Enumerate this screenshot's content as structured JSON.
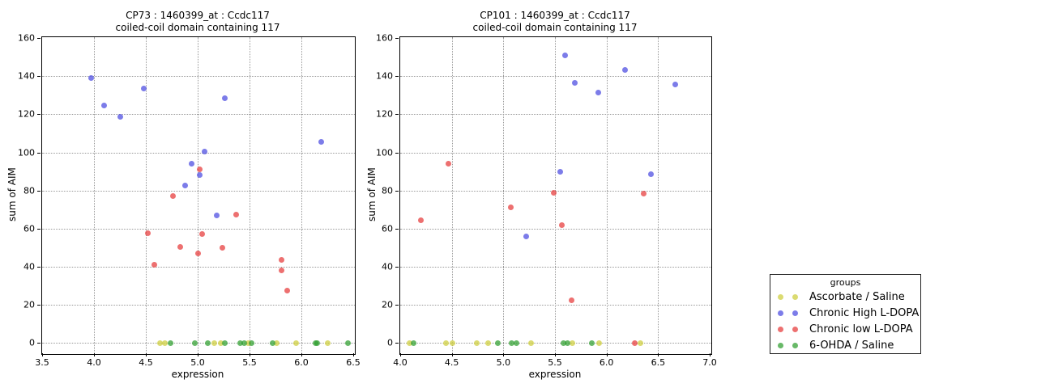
{
  "colors": {
    "yellow": "#cdcd3a",
    "blue": "#4a4ae0",
    "red": "#e63939",
    "green": "#2e9e2e"
  },
  "legend": {
    "title": "groups",
    "entries": [
      {
        "label": "Ascorbate / Saline",
        "color": "yellow"
      },
      {
        "label": "Chronic High L-DOPA",
        "color": "blue"
      },
      {
        "label": "Chronic low L-DOPA",
        "color": "red"
      },
      {
        "label": "6-OHDA / Saline",
        "color": "green"
      }
    ]
  },
  "chart_data": [
    {
      "type": "scatter",
      "title_line1": "CP73 : 1460399_at : Ccdc117",
      "title_line2": "coiled-coil domain containing 117",
      "xlabel": "expression",
      "ylabel": "sum of AIM",
      "xlim": [
        3.5,
        6.5
      ],
      "ylim": [
        -5,
        160.5
      ],
      "xticks": [
        3.5,
        4.0,
        4.5,
        5.0,
        5.5,
        6.0,
        6.5
      ],
      "xtick_labels": [
        "3.5",
        "4.0",
        "4.5",
        "5.0",
        "5.5",
        "6.0",
        "6.5"
      ],
      "yticks": [
        0,
        20,
        40,
        60,
        80,
        100,
        120,
        140,
        160
      ],
      "ytick_labels": [
        "0",
        "20",
        "40",
        "60",
        "80",
        "100",
        "120",
        "140",
        "160"
      ],
      "grid": true,
      "legend_position": "none",
      "series": [
        {
          "name": "Ascorbate / Saline",
          "color": "yellow",
          "points": [
            [
              4.64,
              0
            ],
            [
              4.68,
              0
            ],
            [
              5.16,
              0
            ],
            [
              5.22,
              0
            ],
            [
              5.49,
              0
            ],
            [
              5.76,
              0
            ],
            [
              5.95,
              0
            ],
            [
              6.25,
              0
            ]
          ]
        },
        {
          "name": "6-OHDA / Saline",
          "color": "green",
          "points": [
            [
              4.74,
              0
            ],
            [
              4.97,
              0
            ],
            [
              5.1,
              0
            ],
            [
              5.26,
              0
            ],
            [
              5.41,
              0
            ],
            [
              5.45,
              0
            ],
            [
              5.52,
              0
            ],
            [
              5.72,
              0
            ],
            [
              6.14,
              0
            ],
            [
              6.15,
              0
            ],
            [
              6.45,
              0
            ]
          ]
        },
        {
          "name": "Chronic High L-DOPA",
          "color": "blue",
          "points": [
            [
              3.97,
              139
            ],
            [
              4.1,
              124.5
            ],
            [
              4.25,
              118.5
            ],
            [
              4.48,
              133.5
            ],
            [
              4.88,
              82.5
            ],
            [
              4.94,
              94
            ],
            [
              5.02,
              88
            ],
            [
              5.07,
              100.5
            ],
            [
              5.18,
              67
            ],
            [
              5.26,
              128.5
            ],
            [
              6.19,
              105.5
            ]
          ]
        },
        {
          "name": "Chronic low L-DOPA",
          "color": "red",
          "points": [
            [
              4.52,
              57.5
            ],
            [
              4.58,
              41
            ],
            [
              4.76,
              77
            ],
            [
              4.83,
              50.5
            ],
            [
              5.0,
              47
            ],
            [
              5.02,
              91
            ],
            [
              5.04,
              57
            ],
            [
              5.24,
              50
            ],
            [
              5.37,
              67.5
            ],
            [
              5.81,
              43.5
            ],
            [
              5.81,
              38
            ],
            [
              5.86,
              27.5
            ]
          ]
        }
      ]
    },
    {
      "type": "scatter",
      "title_line1": "CP101 : 1460399_at : Ccdc117",
      "title_line2": "coiled-coil domain containing 117",
      "xlabel": "expression",
      "ylabel": "sum of AIM",
      "xlim": [
        4.0,
        7.0
      ],
      "ylim": [
        -5,
        160.5
      ],
      "xticks": [
        4.0,
        4.5,
        5.0,
        5.5,
        6.0,
        6.5,
        7.0
      ],
      "xtick_labels": [
        "4.0",
        "4.5",
        "5.0",
        "5.5",
        "6.0",
        "6.5",
        "7.0"
      ],
      "yticks": [
        0,
        20,
        40,
        60,
        80,
        100,
        120,
        140,
        160
      ],
      "ytick_labels": [
        "0",
        "20",
        "40",
        "60",
        "80",
        "100",
        "120",
        "140",
        "160"
      ],
      "grid": true,
      "legend_position": "none",
      "series": [
        {
          "name": "Ascorbate / Saline",
          "color": "yellow",
          "points": [
            [
              4.09,
              0
            ],
            [
              4.44,
              0
            ],
            [
              4.51,
              0
            ],
            [
              4.74,
              0
            ],
            [
              4.85,
              0
            ],
            [
              5.27,
              0
            ],
            [
              5.67,
              0
            ],
            [
              5.93,
              0
            ],
            [
              6.33,
              0
            ]
          ]
        },
        {
          "name": "6-OHDA / Saline",
          "color": "green",
          "points": [
            [
              4.13,
              0
            ],
            [
              4.95,
              0
            ],
            [
              5.08,
              0
            ],
            [
              5.13,
              0
            ],
            [
              5.58,
              0
            ],
            [
              5.62,
              0
            ],
            [
              5.86,
              0
            ]
          ]
        },
        {
          "name": "Chronic High L-DOPA",
          "color": "blue",
          "points": [
            [
              5.22,
              56
            ],
            [
              5.55,
              90
            ],
            [
              5.6,
              151
            ],
            [
              5.69,
              136.5
            ],
            [
              5.92,
              131.5
            ],
            [
              6.18,
              143.5
            ],
            [
              6.43,
              88.5
            ],
            [
              6.67,
              135.5
            ]
          ]
        },
        {
          "name": "Chronic low L-DOPA",
          "color": "red",
          "points": [
            [
              4.2,
              64.5
            ],
            [
              4.47,
              94
            ],
            [
              5.07,
              71
            ],
            [
              5.49,
              79
            ],
            [
              5.57,
              62
            ],
            [
              5.66,
              22.5
            ],
            [
              6.27,
              0
            ],
            [
              6.36,
              78.5
            ]
          ]
        }
      ]
    }
  ]
}
